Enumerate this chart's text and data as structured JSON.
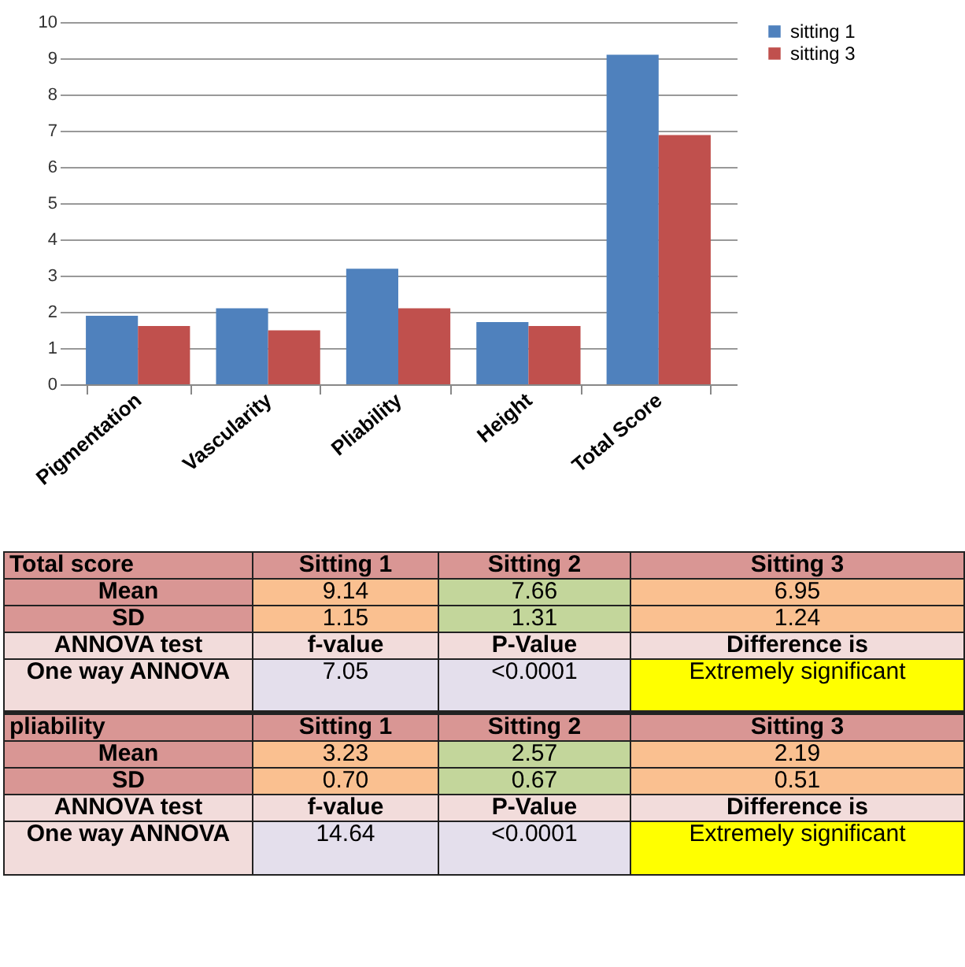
{
  "chart_data": [
    {
      "type": "bar",
      "categories": [
        "Pigmentation",
        "Vascularity",
        "Pliability",
        "Height",
        "Total Score"
      ],
      "series": [
        {
          "name": "sitting 1",
          "color": "#4f81bd",
          "values": [
            1.89,
            2.1,
            3.19,
            1.72,
            9.1
          ]
        },
        {
          "name": "sitting 3",
          "color": "#c0504d",
          "values": [
            1.61,
            1.49,
            2.1,
            1.61,
            6.88
          ]
        }
      ],
      "ylim": [
        0,
        10
      ],
      "yticks": [
        0,
        1,
        2,
        3,
        4,
        5,
        6,
        7,
        8,
        9,
        10
      ],
      "grid": "y",
      "legend": "right"
    },
    {
      "type": "other",
      "annotations": [
        "Total score",
        "Sitting 1",
        "Sitting 2",
        "Sitting 3",
        "Mean",
        "9.14",
        "7.66",
        "6.95",
        "SD",
        "1.15",
        "1.31",
        "1.24",
        "ANNOVA test",
        "f-value",
        "P-Value",
        "Difference is",
        "One way ANNOVA",
        "7.05",
        "<0.0001",
        "Extremely significant",
        "pliability",
        "Sitting 1",
        "Sitting 2",
        "Sitting 3",
        "Mean",
        "3.23",
        "2.57",
        "2.19",
        "SD",
        "0.70",
        "0.67",
        "0.51",
        "ANNOVA test",
        "f-value",
        "P-Value",
        "Difference is",
        "One way ANNOVA",
        "14.64",
        "<0.0001",
        "Extremely significant"
      ],
      "colors": [
        "#d99694",
        "#d99694",
        "#d99694",
        "#d99694",
        "#d99694",
        "#fac090",
        "#c3d69b",
        "#fac090",
        "#d99694",
        "#fac090",
        "#c3d69b",
        "#fac090",
        "#f2dcdb",
        "#f2dcdb",
        "#f2dcdb",
        "#f2dcdb",
        "#f2dcdb",
        "#e4dfec",
        "#e4dfec",
        "#ffff00",
        "#d99694",
        "#d99694",
        "#d99694",
        "#d99694",
        "#d99694",
        "#fac090",
        "#c3d69b",
        "#fac090",
        "#d99694",
        "#fac090",
        "#c3d69b",
        "#fac090",
        "#f2dcdb",
        "#f2dcdb",
        "#f2dcdb",
        "#f2dcdb",
        "#f2dcdb",
        "#e4dfec",
        "#e4dfec",
        "#ffff00"
      ]
    }
  ]
}
